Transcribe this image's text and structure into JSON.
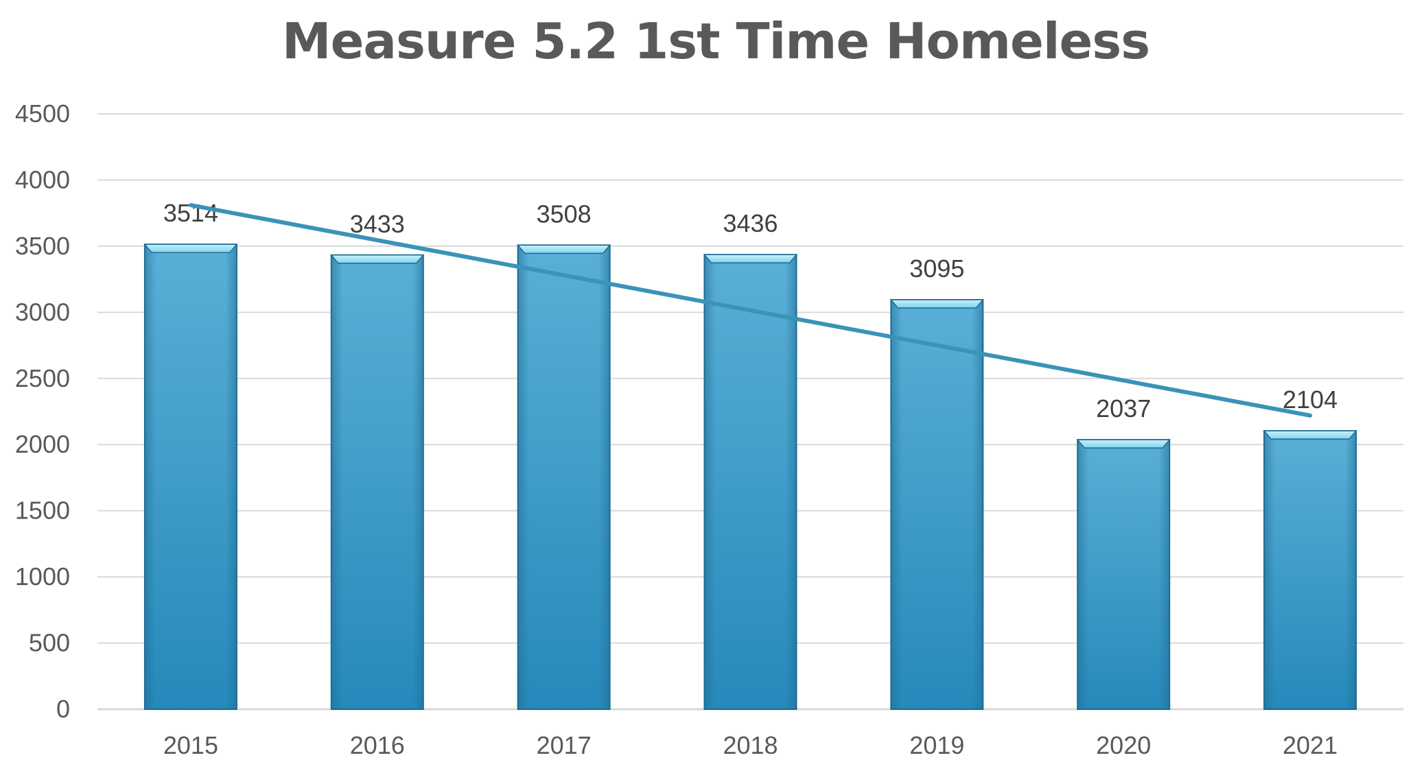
{
  "chart_data": {
    "type": "bar",
    "title": "Measure 5.2 1st Time Homeless",
    "xlabel": "",
    "ylabel": "",
    "categories": [
      "2015",
      "2016",
      "2017",
      "2018",
      "2019",
      "2020",
      "2021"
    ],
    "values": [
      3514,
      3433,
      3508,
      3436,
      3095,
      2037,
      2104
    ],
    "data_labels": [
      "3514",
      "3433",
      "3508",
      "3436",
      "3095",
      "2037",
      "2104"
    ],
    "ylim": [
      0,
      4500
    ],
    "yticks": [
      "0",
      "500",
      "1000",
      "1500",
      "2000",
      "2500",
      "3000",
      "3500",
      "4000",
      "4500"
    ],
    "grid": true,
    "legend": "none",
    "trendline": {
      "type": "linear",
      "start": 3810,
      "end": 2220
    },
    "colors": {
      "bar": "#2E9ACB",
      "bar_top": "#8FDDF5",
      "trendline": "#3A93B8",
      "grid": "#D9D9D9",
      "axis": "#D9D9D9"
    }
  }
}
